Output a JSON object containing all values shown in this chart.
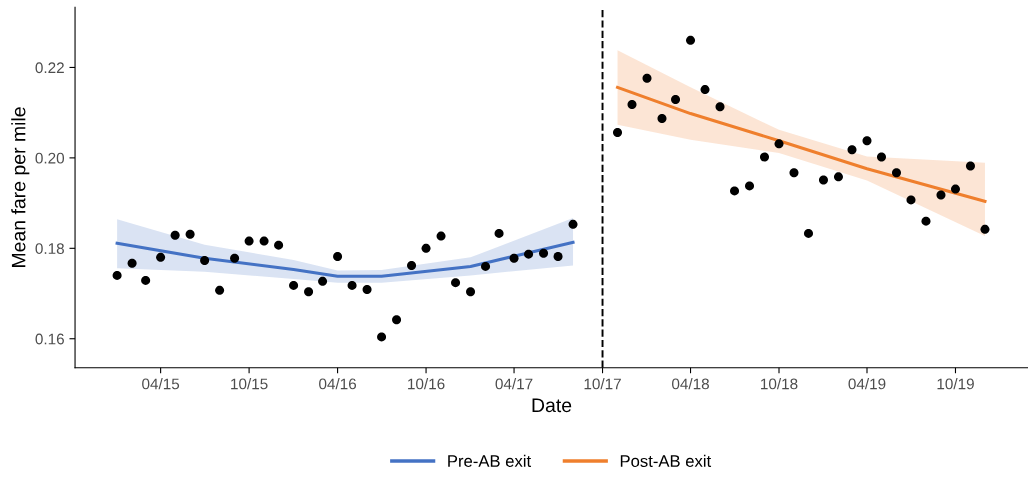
{
  "chart_data": {
    "type": "scatter",
    "xlabel": "Date",
    "ylabel": "Mean fare per mile",
    "xlim": [
      "2014-10-06",
      "2020-02-28"
    ],
    "ylim": [
      0.1536,
      0.2333
    ],
    "xticks": [
      {
        "value": "2015-04",
        "label": "04/15"
      },
      {
        "value": "2015-10",
        "label": "10/15"
      },
      {
        "value": "2016-04",
        "label": "04/16"
      },
      {
        "value": "2016-10",
        "label": "10/16"
      },
      {
        "value": "2017-04",
        "label": "04/17"
      },
      {
        "value": "2017-10",
        "label": "10/17"
      },
      {
        "value": "2018-04",
        "label": "04/18"
      },
      {
        "value": "2018-10",
        "label": "10/18"
      },
      {
        "value": "2019-04",
        "label": "04/19"
      },
      {
        "value": "2019-10",
        "label": "10/19"
      }
    ],
    "yticks": [
      0.16,
      0.18,
      {
        "value": 0.2,
        "label": "0.20"
      },
      0.22
    ],
    "grid": false,
    "legend": "bottom",
    "ref_lines": [
      {
        "axis": "x",
        "value": "2017-10",
        "color": "#000000",
        "line_style": "dashed"
      }
    ],
    "series": [
      {
        "color": "#000000",
        "marker": "circle",
        "x": [
          "2015-01",
          "2015-02",
          "2015-03",
          "2015-04",
          "2015-05",
          "2015-06",
          "2015-07",
          "2015-08",
          "2015-09",
          "2015-10",
          "2015-11",
          "2015-12",
          "2016-01",
          "2016-02",
          "2016-03",
          "2016-04",
          "2016-05",
          "2016-06",
          "2016-07",
          "2016-08",
          "2016-09",
          "2016-10",
          "2016-11",
          "2016-12",
          "2017-01",
          "2017-02",
          "2017-03",
          "2017-04",
          "2017-05",
          "2017-06",
          "2017-07",
          "2017-08",
          "2017-11",
          "2017-12",
          "2018-01",
          "2018-02",
          "2018-03",
          "2018-04",
          "2018-05",
          "2018-06",
          "2018-07",
          "2018-08",
          "2018-09",
          "2018-10",
          "2018-11",
          "2018-12",
          "2019-01",
          "2019-02",
          "2019-03",
          "2019-04",
          "2019-05",
          "2019-06",
          "2019-07",
          "2019-08",
          "2019-09",
          "2019-10",
          "2019-11",
          "2019-12"
        ],
        "values": [
          0.174,
          0.1767,
          0.1729,
          0.178,
          0.1829,
          0.1831,
          0.1773,
          0.1707,
          0.1778,
          0.1816,
          0.1816,
          0.1807,
          0.1718,
          0.1704,
          0.1727,
          0.1782,
          0.1718,
          0.1709,
          0.1604,
          0.1642,
          0.1762,
          0.18,
          0.1827,
          0.1724,
          0.1704,
          0.176,
          0.1833,
          0.1778,
          0.1787,
          0.1789,
          0.1782,
          0.1853,
          0.2056,
          0.2118,
          0.2176,
          0.2087,
          0.2129,
          0.226,
          0.2151,
          0.2113,
          0.1927,
          0.1938,
          0.2002,
          0.2031,
          0.1967,
          0.1833,
          0.1951,
          0.1958,
          0.2018,
          0.2038,
          0.2002,
          0.1967,
          0.1907,
          0.186,
          0.1918,
          0.1931,
          0.1982,
          0.1842
        ]
      },
      {
        "type": "line",
        "name": "Pre-AB exit",
        "color": "#4472c4",
        "x": [
          "2015-01",
          "2015-07",
          "2016-01",
          "2016-04",
          "2016-07",
          "2017-01",
          "2017-08"
        ],
        "values": [
          0.1811,
          0.1778,
          0.1753,
          0.1738,
          0.1738,
          0.176,
          0.1813
        ],
        "lower": [
          0.1756,
          0.1748,
          0.1732,
          0.1724,
          0.1724,
          0.174,
          0.1762
        ],
        "upper": [
          0.1864,
          0.1808,
          0.1774,
          0.1751,
          0.1752,
          0.178,
          0.1867
        ]
      },
      {
        "type": "line",
        "name": "Post-AB exit",
        "color": "#ef7f2d",
        "x": [
          "2017-11",
          "2018-04",
          "2018-10",
          "2019-04",
          "2019-12"
        ],
        "values": [
          0.2156,
          0.2098,
          0.2038,
          0.1976,
          0.1904
        ],
        "lower": [
          0.2073,
          0.204,
          0.2011,
          0.195,
          0.1827
        ],
        "upper": [
          0.2238,
          0.2156,
          0.2062,
          0.2003,
          0.1989
        ]
      }
    ]
  }
}
